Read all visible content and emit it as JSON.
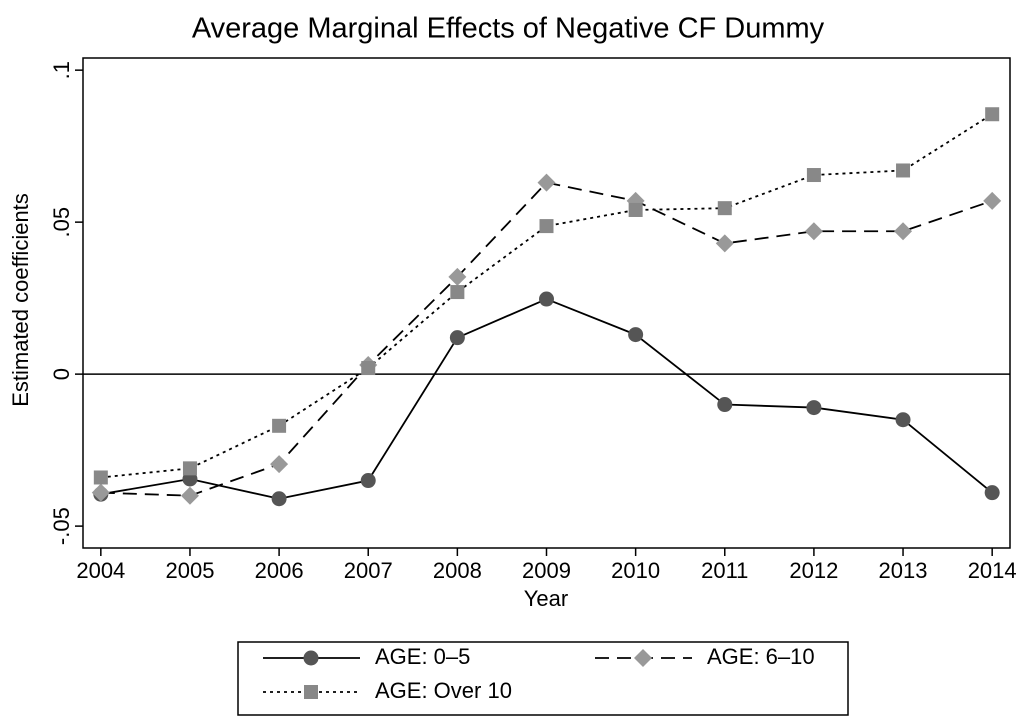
{
  "chart_data": {
    "type": "line",
    "title": "Average Marginal Effects of Negative CF Dummy",
    "x_label": "Year",
    "y_label": "Estimated coefficients",
    "x": [
      2004,
      2005,
      2006,
      2007,
      2008,
      2009,
      2010,
      2011,
      2012,
      2013,
      2014
    ],
    "series": [
      {
        "name": "AGE: 0–5",
        "color": "#555555",
        "marker": "circle",
        "dash": "solid",
        "values": [
          -0.0395,
          -0.0345,
          -0.041,
          -0.035,
          0.012,
          0.0247,
          0.013,
          -0.01,
          -0.011,
          -0.015,
          -0.039
        ]
      },
      {
        "name": "AGE: 6–10",
        "color": "#999999",
        "marker": "diamond",
        "dash": "dashed",
        "values": [
          -0.039,
          -0.04,
          -0.0296,
          0.003,
          0.032,
          0.063,
          0.057,
          0.043,
          0.047,
          0.047,
          0.057
        ]
      },
      {
        "name": "AGE: Over 10",
        "color": "#888888",
        "marker": "square",
        "dash": "dotted",
        "values": [
          -0.034,
          -0.031,
          -0.017,
          0.002,
          0.027,
          0.0487,
          0.054,
          0.0546,
          0.0655,
          0.067,
          0.0855
        ]
      }
    ],
    "xlim": [
      2003.8,
      2014.2
    ],
    "xticks": [
      2004,
      2005,
      2006,
      2007,
      2008,
      2009,
      2010,
      2011,
      2012,
      2013,
      2014
    ],
    "ylim": [
      -0.0572,
      0.104
    ],
    "yticks": [
      {
        "value": -0.05,
        "label": "-.05"
      },
      0,
      {
        "value": 0.05,
        "label": ".05"
      },
      {
        "value": 0.1,
        "label": ".1"
      }
    ],
    "reference_line": 0,
    "grid": false,
    "legend": "bottom"
  }
}
